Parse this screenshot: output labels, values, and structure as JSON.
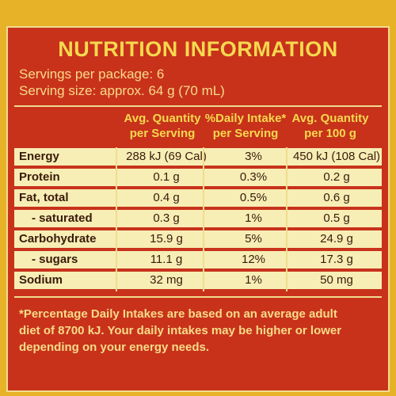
{
  "title": "NUTRITION INFORMATION",
  "servings_per_package": "Servings per package: 6",
  "serving_size": "Serving size: approx. 64 g (70 mL)",
  "columns": [
    {
      "line1": "Avg. Quantity",
      "line2": "per Serving"
    },
    {
      "line1": "%Daily Intake*",
      "line2": "per Serving"
    },
    {
      "line1": "Avg. Quantity",
      "line2": "per 100 g"
    }
  ],
  "rows": [
    {
      "label": "Energy",
      "per_serving": "288 kJ (69 Cal)",
      "daily_intake": "3%",
      "per_100g": "450 kJ (108 Cal)"
    },
    {
      "label": "Protein",
      "per_serving": "0.1 g",
      "daily_intake": "0.3%",
      "per_100g": "0.2 g"
    },
    {
      "label": "Fat, total",
      "per_serving": "0.4 g",
      "daily_intake": "0.5%",
      "per_100g": "0.6 g"
    },
    {
      "label": "- saturated",
      "per_serving": "0.3 g",
      "daily_intake": "1%",
      "per_100g": "0.5 g"
    },
    {
      "label": "Carbohydrate",
      "per_serving": "15.9 g",
      "daily_intake": "5%",
      "per_100g": "24.9 g"
    },
    {
      "label": "- sugars",
      "per_serving": "11.1 g",
      "daily_intake": "12%",
      "per_100g": "17.3 g"
    },
    {
      "label": "Sodium",
      "per_serving": "32 mg",
      "daily_intake": "1%",
      "per_100g": "50 mg"
    }
  ],
  "footnote": [
    "*Percentage Daily Intakes are based on an average adult",
    "diet of 8700 kJ. Your daily intakes may be higher or lower",
    "depending on your energy needs."
  ],
  "colors": {
    "panel": "#c8321b",
    "band": "#f6eeb5",
    "title": "#f5d94e",
    "background": "#e8b228"
  }
}
